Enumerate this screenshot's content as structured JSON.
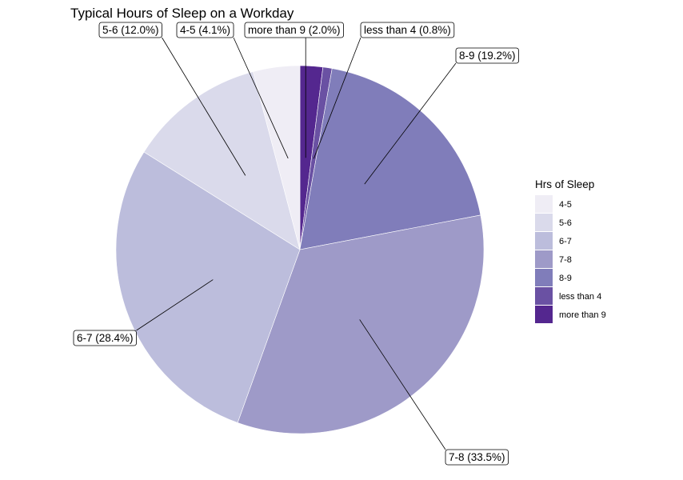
{
  "chart_data": {
    "type": "pie",
    "title": "Typical Hours of Sleep on a Workday",
    "legend_title": "Hrs of Sleep",
    "legend_position": "right",
    "slices": [
      {
        "label": "more than 9",
        "percent": 2.0,
        "color": "#54278f",
        "text": "more than 9 (2.0%)"
      },
      {
        "label": "less than 4",
        "percent": 0.8,
        "color": "#6a51a3",
        "text": "less than 4 (0.8%)"
      },
      {
        "label": "8-9",
        "percent": 19.2,
        "color": "#807dba",
        "text": "8-9 (19.2%)"
      },
      {
        "label": "7-8",
        "percent": 33.5,
        "color": "#9e9ac8",
        "text": "7-8 (33.5%)"
      },
      {
        "label": "6-7",
        "percent": 28.4,
        "color": "#bcbddc",
        "text": "6-7 (28.4%)"
      },
      {
        "label": "5-6",
        "percent": 12.0,
        "color": "#dadaeb",
        "text": "5-6 (12.0%)"
      },
      {
        "label": "4-5",
        "percent": 4.1,
        "color": "#efedf5",
        "text": "4-5 (4.1%)"
      }
    ],
    "legend": [
      {
        "label": "4-5",
        "color": "#efedf5"
      },
      {
        "label": "5-6",
        "color": "#dadaeb"
      },
      {
        "label": "6-7",
        "color": "#bcbddc"
      },
      {
        "label": "7-8",
        "color": "#9e9ac8"
      },
      {
        "label": "8-9",
        "color": "#807dba"
      },
      {
        "label": "less than 4",
        "color": "#6a51a3"
      },
      {
        "label": "more than 9",
        "color": "#54278f"
      }
    ]
  }
}
